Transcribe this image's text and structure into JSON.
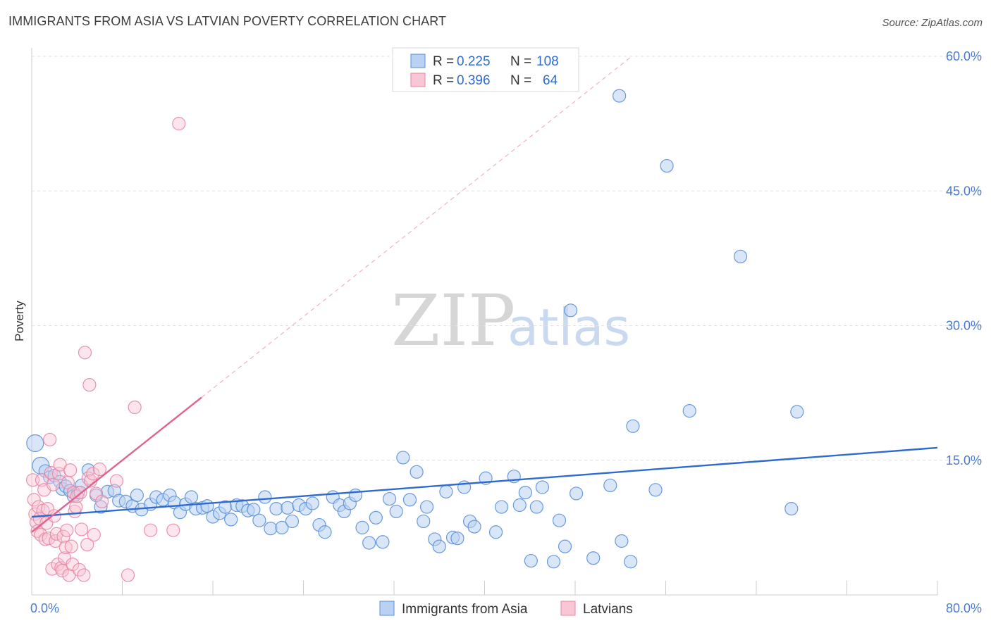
{
  "title": "IMMIGRANTS FROM ASIA VS LATVIAN POVERTY CORRELATION CHART",
  "source": "Source: ZipAtlas.com",
  "chart_data": {
    "type": "scatter",
    "xlabel": "",
    "ylabel": "Poverty",
    "xlim": [
      0,
      80
    ],
    "ylim": [
      0,
      60
    ],
    "x_tick_labels": [
      "0.0%",
      "80.0%"
    ],
    "y_ticks": [
      15,
      30,
      45,
      60
    ],
    "y_tick_labels": [
      "15.0%",
      "30.0%",
      "45.0%",
      "60.0%"
    ],
    "grid": true,
    "watermark": {
      "zip": "ZIP",
      "atlas": "atlas"
    },
    "legend": {
      "placement": "top-center",
      "entries": [
        {
          "r_label": "R =",
          "r_value": "0.225",
          "n_label": "N =",
          "n_value": "108"
        },
        {
          "r_label": "R =",
          "r_value": "0.396",
          "n_label": "N =",
          "n_value": "64"
        }
      ]
    },
    "series": [
      {
        "name": "Immigrants from Asia",
        "color": "#5b8fd8",
        "fill": "#b9d1f3",
        "trend": {
          "x0": 0,
          "y0": 8.7,
          "x1": 80,
          "y1": 16.4,
          "color": "#2f6bcf"
        },
        "points": [
          [
            0.3,
            16.9
          ],
          [
            0.8,
            14.4
          ],
          [
            1.2,
            13.8
          ],
          [
            1.6,
            13.1
          ],
          [
            2.0,
            13.3
          ],
          [
            2.5,
            12.6
          ],
          [
            2.7,
            11.8
          ],
          [
            3.0,
            12.1
          ],
          [
            3.4,
            11.6
          ],
          [
            3.7,
            11.0
          ],
          [
            4.1,
            11.4
          ],
          [
            4.4,
            12.2
          ],
          [
            5.0,
            13.9
          ],
          [
            5.7,
            11.1
          ],
          [
            6.1,
            9.8
          ],
          [
            6.7,
            11.5
          ],
          [
            7.3,
            11.6
          ],
          [
            7.7,
            10.5
          ],
          [
            8.3,
            10.4
          ],
          [
            8.9,
            9.9
          ],
          [
            9.3,
            11.1
          ],
          [
            9.7,
            9.5
          ],
          [
            10.5,
            10.1
          ],
          [
            11.0,
            10.9
          ],
          [
            11.6,
            10.6
          ],
          [
            12.2,
            11.1
          ],
          [
            12.6,
            10.3
          ],
          [
            13.1,
            9.2
          ],
          [
            13.6,
            10.1
          ],
          [
            14.1,
            10.9
          ],
          [
            14.5,
            9.6
          ],
          [
            15.1,
            9.7
          ],
          [
            15.5,
            9.9
          ],
          [
            16.0,
            8.7
          ],
          [
            16.6,
            9.1
          ],
          [
            17.1,
            9.8
          ],
          [
            17.6,
            8.4
          ],
          [
            18.1,
            10.0
          ],
          [
            18.6,
            9.9
          ],
          [
            19.1,
            9.4
          ],
          [
            19.6,
            9.5
          ],
          [
            20.1,
            8.3
          ],
          [
            20.6,
            10.9
          ],
          [
            21.1,
            7.4
          ],
          [
            21.6,
            9.6
          ],
          [
            22.1,
            7.5
          ],
          [
            22.6,
            9.7
          ],
          [
            23.0,
            8.2
          ],
          [
            23.6,
            10.0
          ],
          [
            24.2,
            9.6
          ],
          [
            24.8,
            10.2
          ],
          [
            25.4,
            7.8
          ],
          [
            25.9,
            7.0
          ],
          [
            26.6,
            10.9
          ],
          [
            27.2,
            10.0
          ],
          [
            27.6,
            9.3
          ],
          [
            28.1,
            10.2
          ],
          [
            28.6,
            11.1
          ],
          [
            29.2,
            7.5
          ],
          [
            29.8,
            5.8
          ],
          [
            30.4,
            8.6
          ],
          [
            31.0,
            5.9
          ],
          [
            31.6,
            10.7
          ],
          [
            32.2,
            9.3
          ],
          [
            32.8,
            15.3
          ],
          [
            33.4,
            10.6
          ],
          [
            34.0,
            13.7
          ],
          [
            34.6,
            8.2
          ],
          [
            34.9,
            9.8
          ],
          [
            35.6,
            6.2
          ],
          [
            36.0,
            5.4
          ],
          [
            36.6,
            11.5
          ],
          [
            37.2,
            6.4
          ],
          [
            37.6,
            6.3
          ],
          [
            38.2,
            12.0
          ],
          [
            38.7,
            8.2
          ],
          [
            39.1,
            7.6
          ],
          [
            40.1,
            13.0
          ],
          [
            41.0,
            7.0
          ],
          [
            41.5,
            9.8
          ],
          [
            42.6,
            13.2
          ],
          [
            43.1,
            10.0
          ],
          [
            43.6,
            11.4
          ],
          [
            44.1,
            3.8
          ],
          [
            44.6,
            9.8
          ],
          [
            45.1,
            12.0
          ],
          [
            46.1,
            3.7
          ],
          [
            46.6,
            8.3
          ],
          [
            47.1,
            5.4
          ],
          [
            47.6,
            31.7
          ],
          [
            48.1,
            11.3
          ],
          [
            49.6,
            4.1
          ],
          [
            51.1,
            12.2
          ],
          [
            51.9,
            55.6
          ],
          [
            52.1,
            6.0
          ],
          [
            52.9,
            3.7
          ],
          [
            53.1,
            18.8
          ],
          [
            55.1,
            11.7
          ],
          [
            56.1,
            47.8
          ],
          [
            58.1,
            20.5
          ],
          [
            62.6,
            37.7
          ],
          [
            67.1,
            9.6
          ],
          [
            67.6,
            20.4
          ]
        ]
      },
      {
        "name": "Latvians",
        "color": "#e887a5",
        "fill": "#f8c6d4",
        "trend": {
          "x0": 0,
          "y0": 7.0,
          "x1": 15,
          "y1": 22.0,
          "color": "#e0648e",
          "extend_x1": 53,
          "extend_y1": 60.0
        },
        "points": [
          [
            0.1,
            12.8
          ],
          [
            0.2,
            10.6
          ],
          [
            0.3,
            9.0
          ],
          [
            0.4,
            8.1
          ],
          [
            0.5,
            7.1
          ],
          [
            0.6,
            9.8
          ],
          [
            0.7,
            8.5
          ],
          [
            0.8,
            6.7
          ],
          [
            0.9,
            12.8
          ],
          [
            1.0,
            9.4
          ],
          [
            1.1,
            11.7
          ],
          [
            1.2,
            6.2
          ],
          [
            1.3,
            8.0
          ],
          [
            1.4,
            9.6
          ],
          [
            1.5,
            6.3
          ],
          [
            1.6,
            17.3
          ],
          [
            1.7,
            13.6
          ],
          [
            1.8,
            2.9
          ],
          [
            1.9,
            12.3
          ],
          [
            2.0,
            8.8
          ],
          [
            2.1,
            6.0
          ],
          [
            2.2,
            6.8
          ],
          [
            2.3,
            3.4
          ],
          [
            2.4,
            13.5
          ],
          [
            2.5,
            14.5
          ],
          [
            2.6,
            3.0
          ],
          [
            2.7,
            2.7
          ],
          [
            2.8,
            6.5
          ],
          [
            2.9,
            4.1
          ],
          [
            3.0,
            5.3
          ],
          [
            3.1,
            7.2
          ],
          [
            3.2,
            12.5
          ],
          [
            3.3,
            2.2
          ],
          [
            3.4,
            13.9
          ],
          [
            3.5,
            5.4
          ],
          [
            3.6,
            3.4
          ],
          [
            3.7,
            11.4
          ],
          [
            3.8,
            9.3
          ],
          [
            3.9,
            9.8
          ],
          [
            4.0,
            11.0
          ],
          [
            4.2,
            2.8
          ],
          [
            4.3,
            11.4
          ],
          [
            4.4,
            7.3
          ],
          [
            4.6,
            2.2
          ],
          [
            4.7,
            27.0
          ],
          [
            4.9,
            5.6
          ],
          [
            5.0,
            13.0
          ],
          [
            5.1,
            23.4
          ],
          [
            5.2,
            12.7
          ],
          [
            5.4,
            13.5
          ],
          [
            5.5,
            6.7
          ],
          [
            5.7,
            11.3
          ],
          [
            6.0,
            14.0
          ],
          [
            6.2,
            10.4
          ],
          [
            7.5,
            12.7
          ],
          [
            8.5,
            2.2
          ],
          [
            9.1,
            20.9
          ],
          [
            10.5,
            7.2
          ],
          [
            12.5,
            7.2
          ],
          [
            13.0,
            52.5
          ]
        ]
      }
    ]
  }
}
